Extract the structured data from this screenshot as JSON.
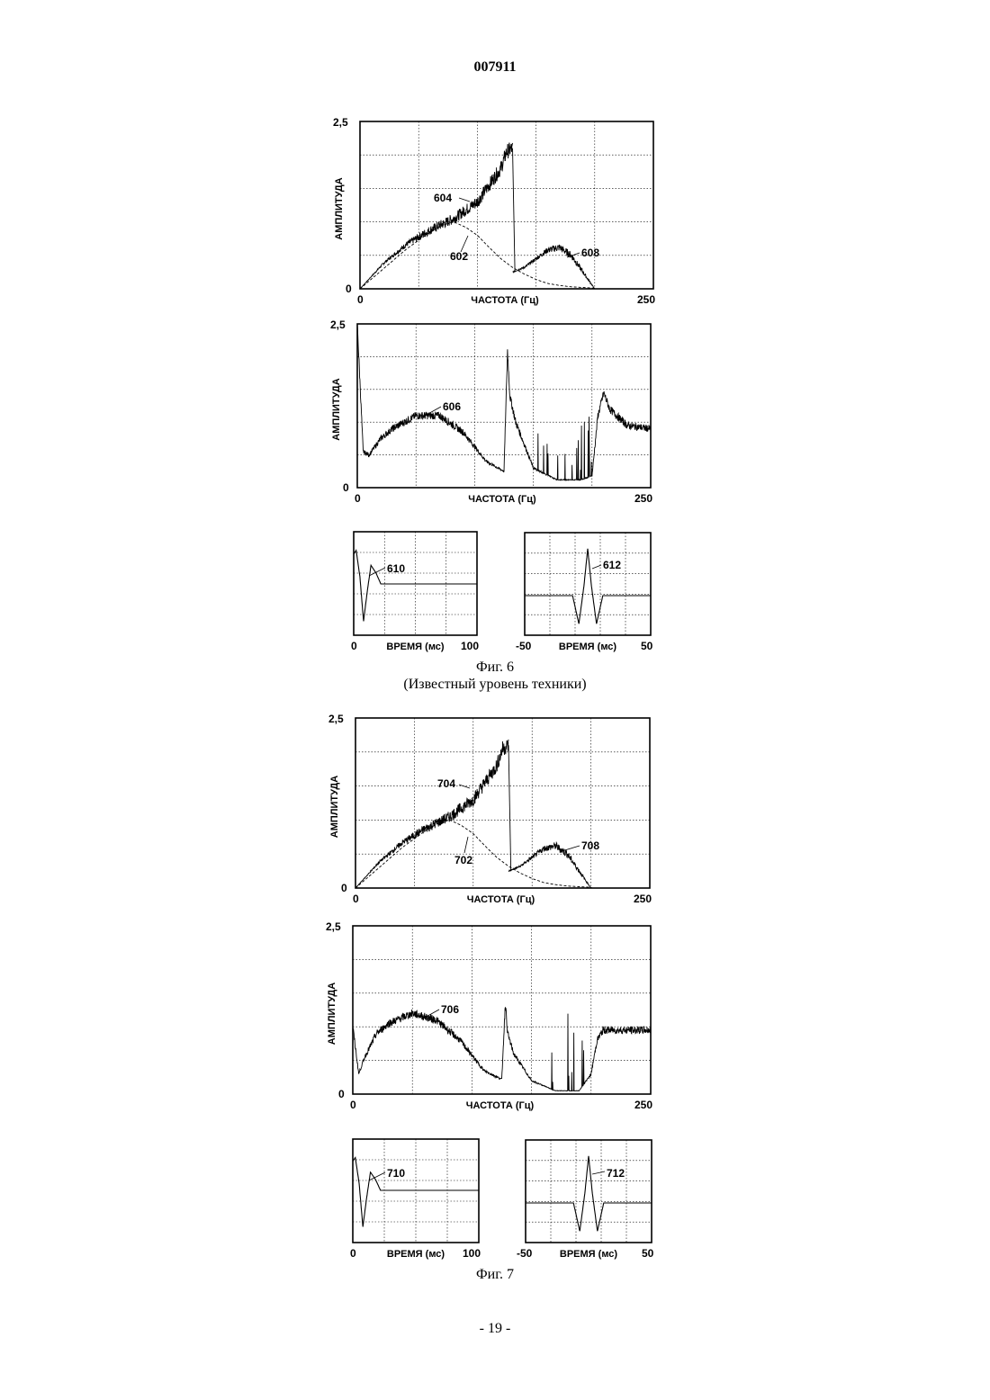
{
  "header": {
    "doc_number": "007911"
  },
  "page_number": "- 19 -",
  "figures": [
    {
      "caption": "Фиг. 6",
      "subcaption": "(Известный уровень техники)"
    },
    {
      "caption": "Фиг. 7",
      "subcaption": ""
    }
  ],
  "chart_data": [
    {
      "id": "fig6-top",
      "type": "line",
      "ylabel": "АМПЛИТУДА",
      "xlabel": "ЧАСТОТА (Гц)",
      "x_ticks": [
        "0",
        "250"
      ],
      "y_ticks": [
        "0",
        "2,5"
      ],
      "xlim": [
        0,
        250
      ],
      "ylim": [
        0,
        2.5
      ],
      "series": [
        {
          "name": "602",
          "x": [
            0,
            20,
            40,
            60,
            70,
            80,
            90,
            100,
            110,
            120,
            130,
            140,
            150,
            160,
            170,
            180,
            190,
            200
          ],
          "y": [
            0,
            0.3,
            0.6,
            0.85,
            0.95,
            1.0,
            0.92,
            0.8,
            0.62,
            0.45,
            0.32,
            0.22,
            0.14,
            0.08,
            0.05,
            0.03,
            0.02,
            0.01
          ]
        },
        {
          "name": "604",
          "x": [
            0,
            20,
            40,
            60,
            80,
            100,
            110,
            120,
            125,
            130
          ],
          "y": [
            0,
            0.38,
            0.67,
            0.88,
            1.05,
            1.3,
            1.55,
            1.8,
            2.05,
            2.1
          ]
        },
        {
          "name": "608",
          "x": [
            130,
            140,
            150,
            160,
            170,
            180,
            190,
            200
          ],
          "y": [
            0.25,
            0.32,
            0.45,
            0.58,
            0.62,
            0.5,
            0.25,
            0.0
          ]
        }
      ]
    },
    {
      "id": "fig6-mid",
      "type": "line",
      "ylabel": "АМПЛИТУДА",
      "xlabel": "ЧАСТОТА (Гц)",
      "x_ticks": [
        "0",
        "250"
      ],
      "y_ticks": [
        "0",
        "2,5"
      ],
      "xlim": [
        0,
        250
      ],
      "ylim": [
        0,
        2.5
      ],
      "series": [
        {
          "name": "606",
          "x": [
            0,
            5,
            10,
            20,
            30,
            50,
            70,
            90,
            110,
            125,
            128,
            130,
            135,
            150,
            170,
            190,
            200,
            205,
            210,
            215,
            230,
            250
          ],
          "y": [
            2.5,
            0.55,
            0.5,
            0.75,
            0.9,
            1.1,
            1.1,
            0.85,
            0.4,
            0.25,
            2.1,
            1.4,
            1.0,
            0.3,
            0.12,
            0.12,
            0.18,
            1.1,
            1.45,
            1.2,
            0.95,
            0.9
          ]
        }
      ]
    },
    {
      "id": "fig6-left",
      "type": "line",
      "xlabel": "ВРЕМЯ (мс)",
      "x_ticks": [
        "0",
        "100"
      ],
      "xlim": [
        0,
        100
      ],
      "series": [
        {
          "name": "610",
          "x": [
            0,
            2,
            5,
            8,
            11,
            14,
            18,
            22,
            100
          ],
          "y": [
            0.8,
            0.9,
            0.2,
            -1.0,
            -0.2,
            0.5,
            0.3,
            0.0,
            0.0
          ]
        }
      ]
    },
    {
      "id": "fig6-right",
      "type": "line",
      "xlabel": "ВРЕМЯ (мс)",
      "x_ticks": [
        "-50",
        "50"
      ],
      "xlim": [
        -50,
        50
      ],
      "series": [
        {
          "name": "612",
          "x": [
            -50,
            -12,
            -7,
            -3,
            0,
            3,
            7,
            12,
            50
          ],
          "y": [
            0,
            0,
            -0.6,
            0.2,
            1.0,
            0.2,
            -0.6,
            0,
            0
          ]
        }
      ]
    },
    {
      "id": "fig7-top",
      "type": "line",
      "ylabel": "АМПЛИТУДА",
      "xlabel": "ЧАСТОТА (Гц)",
      "x_ticks": [
        "0",
        "250"
      ],
      "y_ticks": [
        "0",
        "2,5"
      ],
      "xlim": [
        0,
        250
      ],
      "ylim": [
        0,
        2.5
      ],
      "series": [
        {
          "name": "702",
          "x": [
            0,
            20,
            40,
            60,
            70,
            80,
            90,
            100,
            110,
            120,
            130,
            140,
            150,
            160,
            170,
            180,
            190,
            200
          ],
          "y": [
            0,
            0.3,
            0.6,
            0.85,
            0.95,
            1.0,
            0.92,
            0.8,
            0.62,
            0.45,
            0.32,
            0.22,
            0.14,
            0.08,
            0.05,
            0.03,
            0.02,
            0.01
          ]
        },
        {
          "name": "704",
          "x": [
            0,
            20,
            40,
            60,
            80,
            100,
            110,
            120,
            125,
            130
          ],
          "y": [
            0,
            0.38,
            0.67,
            0.88,
            1.05,
            1.3,
            1.55,
            1.8,
            2.05,
            2.1
          ]
        },
        {
          "name": "708",
          "x": [
            130,
            140,
            150,
            160,
            170,
            180,
            190,
            200
          ],
          "y": [
            0.25,
            0.32,
            0.45,
            0.58,
            0.62,
            0.5,
            0.25,
            0.0
          ]
        }
      ]
    },
    {
      "id": "fig7-mid",
      "type": "line",
      "ylabel": "АМПЛИТУДА",
      "xlabel": "ЧАСТОТА (Гц)",
      "x_ticks": [
        "0",
        "250"
      ],
      "y_ticks": [
        "0",
        "2,5"
      ],
      "xlim": [
        0,
        250
      ],
      "ylim": [
        0,
        2.5
      ],
      "series": [
        {
          "name": "706",
          "x": [
            0,
            5,
            10,
            20,
            30,
            50,
            70,
            90,
            110,
            125,
            128,
            130,
            135,
            150,
            170,
            190,
            200,
            205,
            210,
            215,
            230,
            250
          ],
          "y": [
            1.0,
            0.3,
            0.55,
            0.9,
            1.05,
            1.2,
            1.1,
            0.8,
            0.35,
            0.22,
            1.35,
            0.9,
            0.6,
            0.2,
            0.05,
            0.05,
            0.3,
            0.8,
            0.95,
            0.95,
            0.95,
            0.95
          ]
        }
      ]
    },
    {
      "id": "fig7-left",
      "type": "line",
      "xlabel": "ВРЕМЯ (мс)",
      "x_ticks": [
        "0",
        "100"
      ],
      "xlim": [
        0,
        100
      ],
      "series": [
        {
          "name": "710",
          "x": [
            0,
            2,
            5,
            8,
            11,
            14,
            18,
            22,
            100
          ],
          "y": [
            0.8,
            0.9,
            0.2,
            -1.0,
            -0.2,
            0.5,
            0.3,
            0.0,
            0.0
          ]
        }
      ]
    },
    {
      "id": "fig7-right",
      "type": "line",
      "xlabel": "ВРЕМЯ (мс)",
      "x_ticks": [
        "-50",
        "50"
      ],
      "xlim": [
        -50,
        50
      ],
      "series": [
        {
          "name": "712",
          "x": [
            -50,
            -12,
            -7,
            -3,
            0,
            3,
            7,
            12,
            50
          ],
          "y": [
            0,
            0,
            -0.6,
            0.2,
            1.0,
            0.2,
            -0.6,
            0,
            0
          ]
        }
      ]
    }
  ]
}
